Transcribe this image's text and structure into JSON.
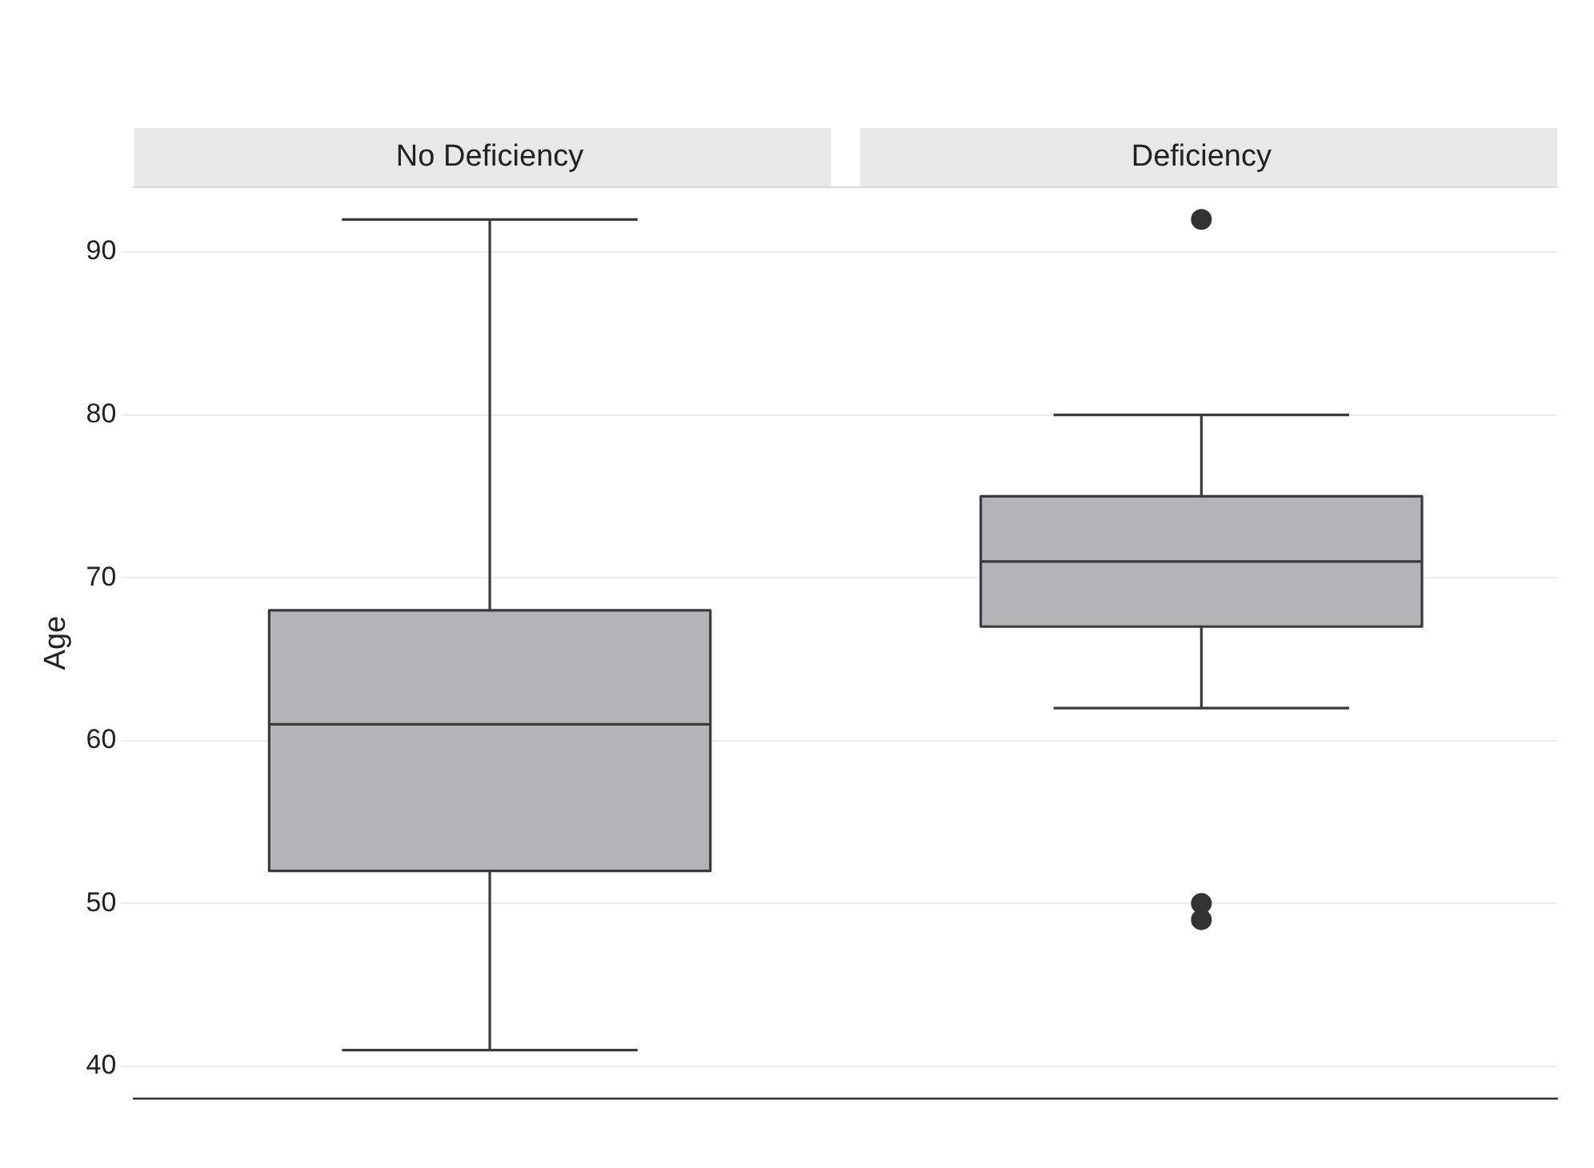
{
  "chart_data": {
    "type": "box",
    "ylabel": "Age",
    "categories": [
      "No Deficiency",
      "Deficiency"
    ],
    "series": [
      {
        "color": "#b4b4b8",
        "boxes": [
          {
            "low": 41,
            "q1": 52,
            "median": 61,
            "q3": 68,
            "high": 92
          },
          {
            "low": 62,
            "q1": 67,
            "median": 71,
            "q3": 75,
            "high": 80,
            "outliers": [
              92,
              50,
              49
            ]
          }
        ]
      }
    ],
    "ylim": [
      38,
      94
    ],
    "yticks": [
      40,
      50,
      60,
      70,
      80,
      90
    ],
    "grid": "y",
    "legend": false
  }
}
